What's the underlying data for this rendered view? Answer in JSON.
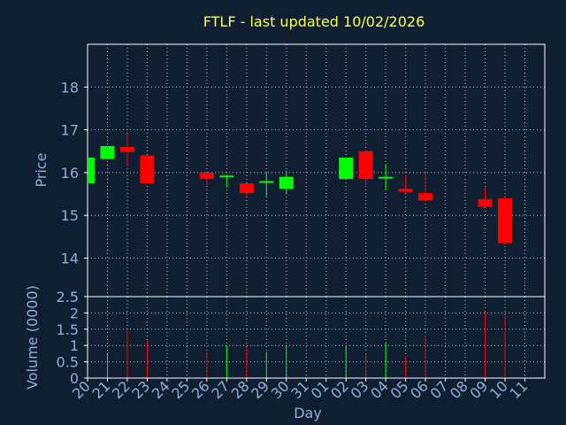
{
  "chart_data": {
    "type": "candlestick",
    "title": "FTLF - last updated 10/02/2026",
    "price_panel": {
      "ylabel": "Price",
      "ylim": [
        13.1,
        19.0
      ],
      "yticks": [
        14,
        15,
        16,
        17,
        18
      ]
    },
    "volume_panel": {
      "ylabel": "Volume (0000)",
      "ylim": [
        0,
        2.5
      ],
      "yticks": [
        "0",
        "0.5",
        "1",
        "1.5",
        "2",
        "2.5"
      ]
    },
    "xlabel": "Day",
    "x_ticks": [
      "20",
      "21",
      "22",
      "23",
      "24",
      "25",
      "26",
      "27",
      "28",
      "29",
      "30",
      "31",
      "01",
      "02",
      "03",
      "04",
      "05",
      "06",
      "07",
      "08",
      "09",
      "10",
      "11"
    ],
    "grid": true,
    "colors": {
      "up": "#00ff00",
      "down": "#ff0000",
      "grid": "#c8c8c8",
      "title": "#ffff44",
      "axis_text": "#8fb0d8",
      "background": "#0f1e31"
    },
    "candles": [
      {
        "x": "20",
        "open": 15.75,
        "high": 16.35,
        "low": 15.75,
        "close": 16.35,
        "volume": 0
      },
      {
        "x": "21",
        "open": 16.32,
        "high": 16.62,
        "low": 16.3,
        "close": 16.62,
        "volume": 0.75
      },
      {
        "x": "22",
        "open": 16.6,
        "high": 16.9,
        "low": 16.15,
        "close": 16.48,
        "volume": 1.45
      },
      {
        "x": "23",
        "open": 16.4,
        "high": 16.4,
        "low": 15.75,
        "close": 15.75,
        "volume": 1.15
      },
      {
        "x": "26",
        "open": 16.0,
        "high": 16.0,
        "low": 15.7,
        "close": 15.85,
        "volume": 0.8
      },
      {
        "x": "27",
        "open": 15.9,
        "high": 15.95,
        "low": 15.65,
        "close": 15.93,
        "volume": 1.0
      },
      {
        "x": "28",
        "open": 15.75,
        "high": 15.75,
        "low": 15.45,
        "close": 15.52,
        "volume": 0.95
      },
      {
        "x": "29",
        "open": 15.8,
        "high": 16.0,
        "low": 15.45,
        "close": 15.8,
        "volume": 0.8
      },
      {
        "x": "30",
        "open": 15.62,
        "high": 16.05,
        "low": 15.5,
        "close": 15.9,
        "volume": 1.0
      },
      {
        "x": "02",
        "open": 15.85,
        "high": 16.35,
        "low": 15.85,
        "close": 16.35,
        "volume": 0.95
      },
      {
        "x": "03",
        "open": 16.5,
        "high": 16.5,
        "low": 15.65,
        "close": 15.85,
        "volume": 0.75
      },
      {
        "x": "04",
        "open": 15.88,
        "high": 16.2,
        "low": 15.6,
        "close": 15.9,
        "volume": 1.1
      },
      {
        "x": "05",
        "open": 15.62,
        "high": 15.95,
        "low": 15.55,
        "close": 15.55,
        "volume": 0.65
      },
      {
        "x": "06",
        "open": 15.52,
        "high": 16.0,
        "low": 15.35,
        "close": 15.35,
        "volume": 1.3
      },
      {
        "x": "09",
        "open": 15.38,
        "high": 15.65,
        "low": 15.2,
        "close": 15.2,
        "volume": 2.05
      },
      {
        "x": "10",
        "open": 15.4,
        "high": 15.4,
        "low": 14.35,
        "close": 14.35,
        "volume": 1.9
      }
    ]
  }
}
